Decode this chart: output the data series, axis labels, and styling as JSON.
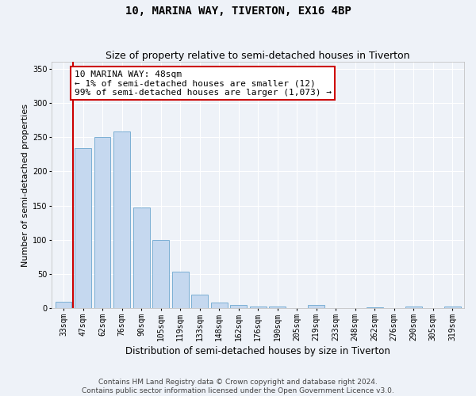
{
  "title": "10, MARINA WAY, TIVERTON, EX16 4BP",
  "subtitle": "Size of property relative to semi-detached houses in Tiverton",
  "xlabel": "Distribution of semi-detached houses by size in Tiverton",
  "ylabel": "Number of semi-detached properties",
  "categories": [
    "33sqm",
    "47sqm",
    "62sqm",
    "76sqm",
    "90sqm",
    "105sqm",
    "119sqm",
    "133sqm",
    "148sqm",
    "162sqm",
    "176sqm",
    "190sqm",
    "205sqm",
    "219sqm",
    "233sqm",
    "248sqm",
    "262sqm",
    "276sqm",
    "290sqm",
    "305sqm",
    "319sqm"
  ],
  "values": [
    9,
    234,
    250,
    258,
    147,
    100,
    53,
    20,
    8,
    5,
    3,
    3,
    0,
    5,
    0,
    0,
    2,
    0,
    3,
    0,
    3
  ],
  "bar_color": "#c5d8ef",
  "bar_edge_color": "#7bafd4",
  "annotation_text": "10 MARINA WAY: 48sqm\n← 1% of semi-detached houses are smaller (12)\n99% of semi-detached houses are larger (1,073) →",
  "annotation_box_facecolor": "#ffffff",
  "annotation_box_edgecolor": "#cc0000",
  "red_line_color": "#cc0000",
  "ylim": [
    0,
    360
  ],
  "yticks": [
    0,
    50,
    100,
    150,
    200,
    250,
    300,
    350
  ],
  "background_color": "#eef2f8",
  "grid_color": "#ffffff",
  "footer_text": "Contains HM Land Registry data © Crown copyright and database right 2024.\nContains public sector information licensed under the Open Government Licence v3.0.",
  "title_fontsize": 10,
  "subtitle_fontsize": 9,
  "xlabel_fontsize": 8.5,
  "ylabel_fontsize": 8,
  "tick_fontsize": 7,
  "annotation_fontsize": 8,
  "footer_fontsize": 6.5
}
